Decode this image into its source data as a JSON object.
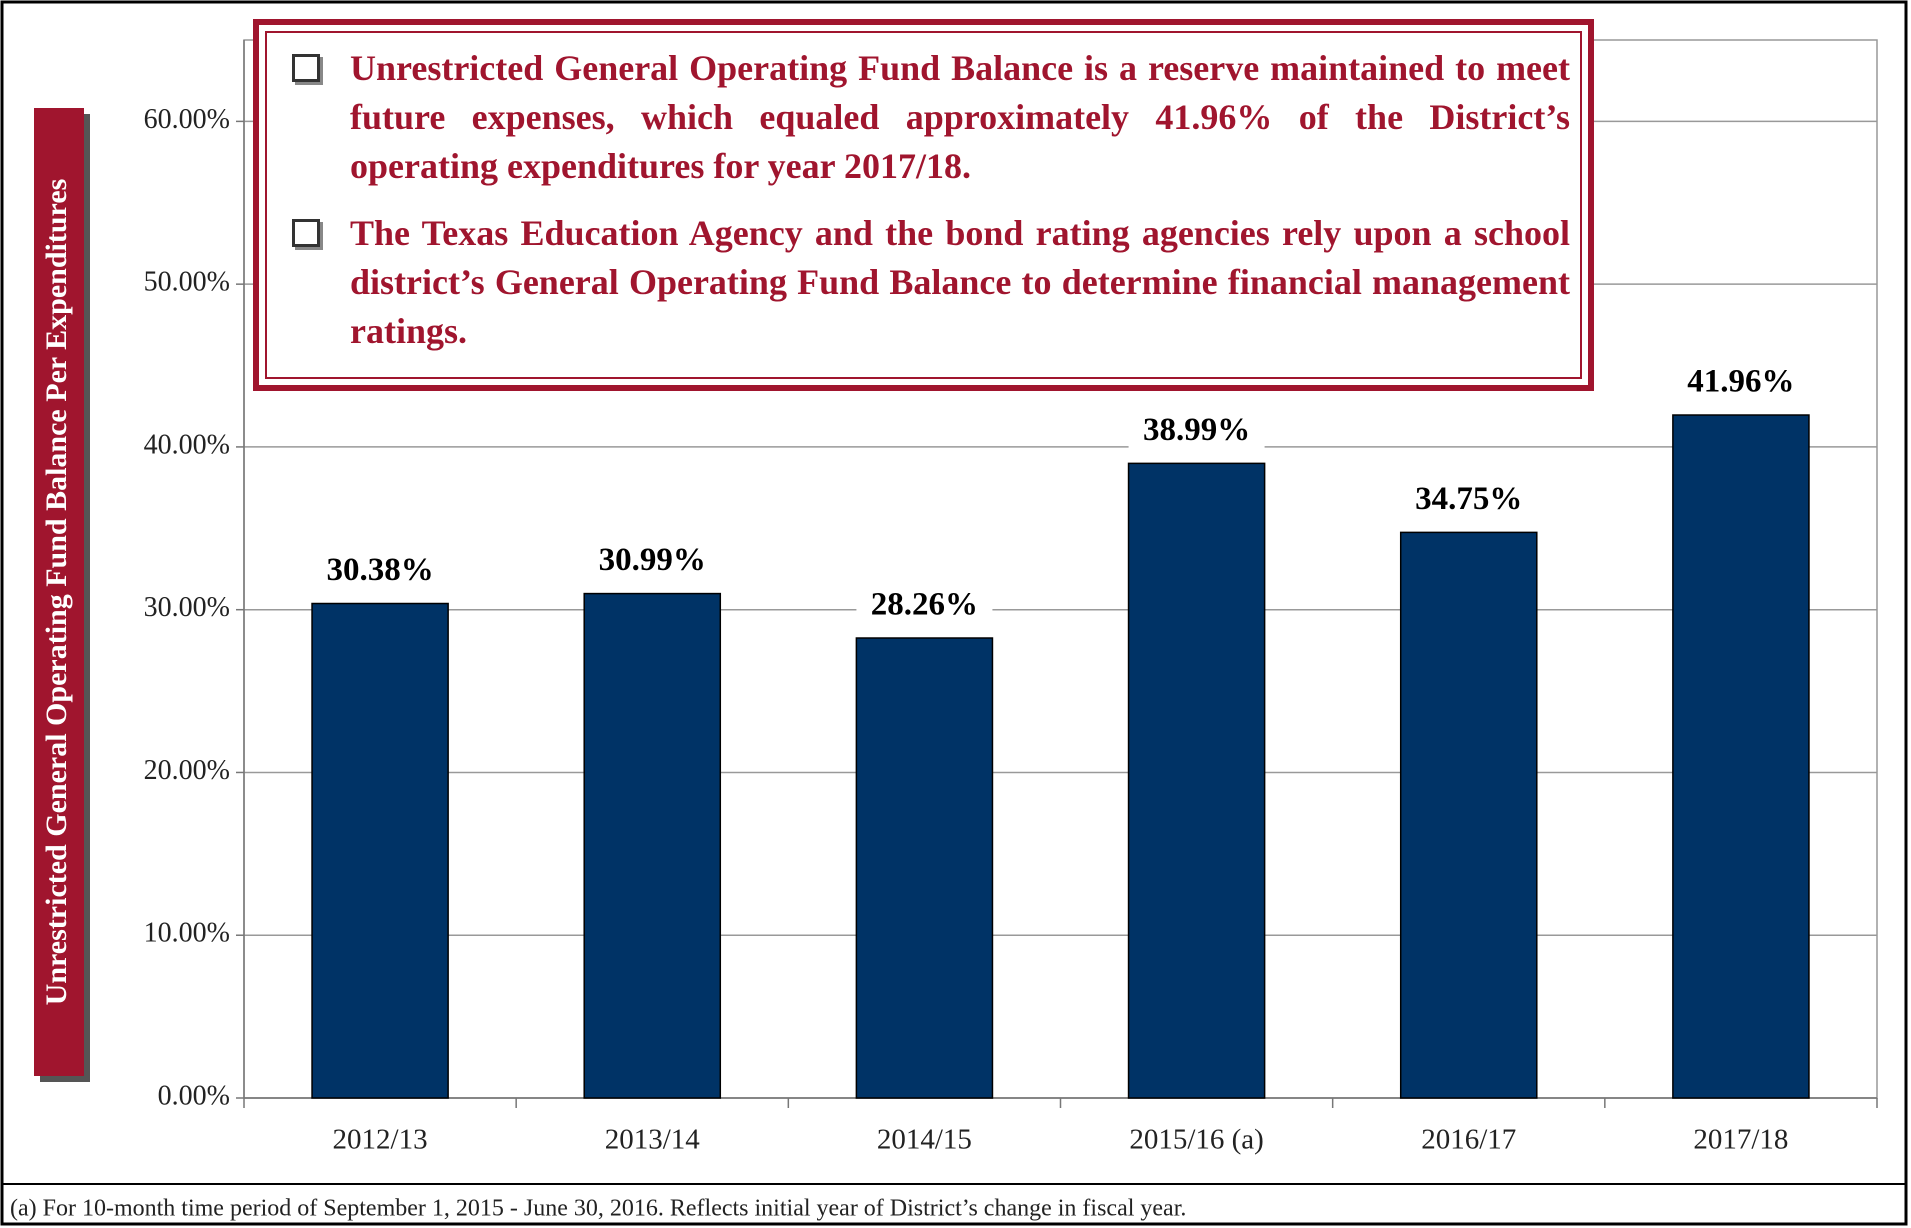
{
  "chart_data": {
    "type": "bar",
    "y_label": "Unrestricted General Operating Fund Balance Per Expenditures",
    "categories": [
      "2012/13",
      "2013/14",
      "2014/15",
      "2015/16 (a)",
      "2016/17",
      "2017/18"
    ],
    "values": [
      30.38,
      30.99,
      28.26,
      38.99,
      34.75,
      41.96
    ],
    "value_labels": [
      "30.38%",
      "30.99%",
      "28.26%",
      "38.99%",
      "34.75%",
      "41.96%"
    ],
    "color": "#003366",
    "ylim": [
      0,
      65
    ],
    "yticks": [
      {
        "value": 0,
        "label": "0.00%"
      },
      {
        "value": 10,
        "label": "10.00%"
      },
      {
        "value": 20,
        "label": "20.00%"
      },
      {
        "value": 30,
        "label": "30.00%"
      },
      {
        "value": 40,
        "label": "40.00%"
      },
      {
        "value": 50,
        "label": "50.00%"
      },
      {
        "value": 60,
        "label": "60.00%"
      }
    ],
    "grid": true,
    "annotations": [
      "Unrestricted General Operating Fund Balance is a reserve maintained to meet future expenses, which equaled approximately 41.96% of the District’s operating expenditures for year 2017/18.",
      "The Texas Education Agency and the bond rating agencies rely upon a school district’s General Operating Fund Balance to determine financial management ratings."
    ],
    "footnote": "(a)  For 10-month time period of September 1, 2015 - June 30, 2016. Reflects initial year of District’s change in fiscal year."
  }
}
